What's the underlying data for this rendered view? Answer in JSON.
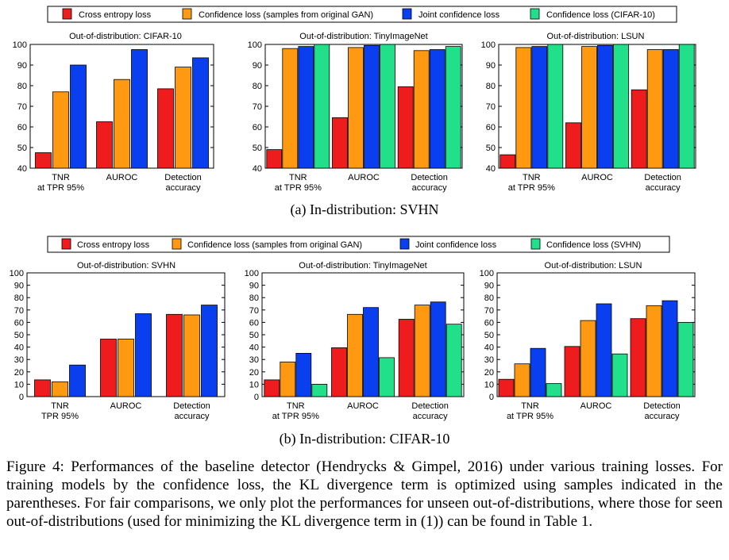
{
  "colors": {
    "cross_entropy": "#ee1c1c",
    "confidence_gan": "#ff9912",
    "joint": "#0a3ff0",
    "confidence_other": "#22e08a"
  },
  "sections": [
    {
      "subcaption": "(a) In-distribution: SVHN",
      "legend": [
        "Cross entropy loss",
        "Confidence loss (samples from original GAN)",
        "Joint confidence loss",
        "Confidence loss (CIFAR-10)"
      ],
      "charts": [
        {
          "title": "Out-of-distribution: CIFAR-10"
        },
        {
          "title": "Out-of-distribution: TinyImageNet"
        },
        {
          "title": "Out-of-distribution: LSUN"
        }
      ]
    },
    {
      "subcaption": "(b) In-distribution: CIFAR-10",
      "legend": [
        "Cross entropy loss",
        "Confidence loss (samples from original GAN)",
        "Joint confidence loss",
        "Confidence loss (SVHN)"
      ],
      "charts": [
        {
          "title": "Out-of-distribution: SVHN"
        },
        {
          "title": "Out-of-distribution: TinyImageNet"
        },
        {
          "title": "Out-of-distribution: LSUN"
        }
      ]
    }
  ],
  "chart_data": [
    {
      "type": "bar",
      "title": "Out-of-distribution: CIFAR-10",
      "categories": [
        [
          "TNR",
          "at TPR 95%"
        ],
        [
          "AUROC"
        ],
        [
          "Detection",
          "accuracy"
        ]
      ],
      "ylim": [
        40,
        100
      ],
      "yticks": [
        40,
        50,
        60,
        70,
        80,
        90,
        100
      ],
      "series": [
        {
          "name": "Cross entropy loss",
          "color": "#ee1c1c",
          "values": [
            47.5,
            62.5,
            78.5
          ]
        },
        {
          "name": "Confidence loss (samples from original GAN)",
          "color": "#ff9912",
          "values": [
            77,
            83,
            89
          ]
        },
        {
          "name": "Joint confidence loss",
          "color": "#0a3ff0",
          "values": [
            90,
            97.5,
            93.5
          ]
        }
      ]
    },
    {
      "type": "bar",
      "title": "Out-of-distribution: TinyImageNet",
      "categories": [
        [
          "TNR",
          "at TPR 95%"
        ],
        [
          "AUROC"
        ],
        [
          "Detection",
          "accuracy"
        ]
      ],
      "ylim": [
        40,
        100
      ],
      "yticks": [
        40,
        50,
        60,
        70,
        80,
        90,
        100
      ],
      "series": [
        {
          "name": "Cross entropy loss",
          "color": "#ee1c1c",
          "values": [
            49,
            64.5,
            79.5
          ]
        },
        {
          "name": "Confidence loss (samples from original GAN)",
          "color": "#ff9912",
          "values": [
            98,
            98.5,
            97
          ]
        },
        {
          "name": "Joint confidence loss",
          "color": "#0a3ff0",
          "values": [
            99,
            99.5,
            97.5
          ]
        },
        {
          "name": "Confidence loss (CIFAR-10)",
          "color": "#22e08a",
          "values": [
            100,
            100,
            99
          ]
        }
      ]
    },
    {
      "type": "bar",
      "title": "Out-of-distribution: LSUN",
      "categories": [
        [
          "TNR",
          "at TPR 95%"
        ],
        [
          "AUROC"
        ],
        [
          "Detection",
          "accuracy"
        ]
      ],
      "ylim": [
        40,
        100
      ],
      "yticks": [
        40,
        50,
        60,
        70,
        80,
        90,
        100
      ],
      "series": [
        {
          "name": "Cross entropy loss",
          "color": "#ee1c1c",
          "values": [
            46.5,
            62,
            78
          ]
        },
        {
          "name": "Confidence loss (samples from original GAN)",
          "color": "#ff9912",
          "values": [
            98.5,
            99,
            97.5
          ]
        },
        {
          "name": "Joint confidence loss",
          "color": "#0a3ff0",
          "values": [
            99,
            99.5,
            97.5
          ]
        },
        {
          "name": "Confidence loss (CIFAR-10)",
          "color": "#22e08a",
          "values": [
            100,
            100,
            100
          ]
        }
      ]
    },
    {
      "type": "bar",
      "title": "Out-of-distribution: SVHN",
      "categories": [
        [
          "TNR",
          "TPR 95%"
        ],
        [
          "AUROC"
        ],
        [
          "Detection",
          "accuracy"
        ]
      ],
      "ylim": [
        0,
        100
      ],
      "yticks": [
        0,
        10,
        20,
        30,
        40,
        50,
        60,
        70,
        80,
        90,
        100
      ],
      "series": [
        {
          "name": "Cross entropy loss",
          "color": "#ee1c1c",
          "values": [
            13.5,
            46.5,
            66.5
          ]
        },
        {
          "name": "Confidence loss (samples from original GAN)",
          "color": "#ff9912",
          "values": [
            12,
            46.5,
            66
          ]
        },
        {
          "name": "Joint confidence loss",
          "color": "#0a3ff0",
          "values": [
            25.5,
            67,
            74
          ]
        }
      ]
    },
    {
      "type": "bar",
      "title": "Out-of-distribution: TinyImageNet",
      "categories": [
        [
          "TNR",
          "at TPR 95%"
        ],
        [
          "AUROC"
        ],
        [
          "Detection",
          "accuracy"
        ]
      ],
      "ylim": [
        0,
        100
      ],
      "yticks": [
        0,
        10,
        20,
        30,
        40,
        50,
        60,
        70,
        80,
        90,
        100
      ],
      "series": [
        {
          "name": "Cross entropy loss",
          "color": "#ee1c1c",
          "values": [
            13.5,
            39.5,
            62.5
          ]
        },
        {
          "name": "Confidence loss (samples from original GAN)",
          "color": "#ff9912",
          "values": [
            28,
            66.5,
            74
          ]
        },
        {
          "name": "Joint confidence loss",
          "color": "#0a3ff0",
          "values": [
            35,
            72,
            76.5
          ]
        },
        {
          "name": "Confidence loss (SVHN)",
          "color": "#22e08a",
          "values": [
            10,
            31.5,
            58.5
          ]
        }
      ]
    },
    {
      "type": "bar",
      "title": "Out-of-distribution: LSUN",
      "categories": [
        [
          "TNR",
          "at TPR 95%"
        ],
        [
          "AUROC"
        ],
        [
          "Detection",
          "accuracy"
        ]
      ],
      "ylim": [
        0,
        100
      ],
      "yticks": [
        0,
        10,
        20,
        30,
        40,
        50,
        60,
        70,
        80,
        90,
        100
      ],
      "series": [
        {
          "name": "Cross entropy loss",
          "color": "#ee1c1c",
          "values": [
            14,
            40.5,
            63
          ]
        },
        {
          "name": "Confidence loss (samples from original GAN)",
          "color": "#ff9912",
          "values": [
            26.5,
            61.5,
            73.5
          ]
        },
        {
          "name": "Joint confidence loss",
          "color": "#0a3ff0",
          "values": [
            39,
            75,
            77.5
          ]
        },
        {
          "name": "Confidence loss (SVHN)",
          "color": "#22e08a",
          "values": [
            10.5,
            34.5,
            60
          ]
        }
      ]
    }
  ],
  "caption": "Figure 4: Performances of the baseline detector (Hendrycks & Gimpel, 2016) under various training losses. For training models by the confidence loss, the KL divergence term is optimized using samples indicated in the parentheses. For fair comparisons, we only plot the performances for unseen out-of-distributions, where those for seen out-of-distributions (used for minimizing the KL divergence term in (1)) can be found in Table 1."
}
